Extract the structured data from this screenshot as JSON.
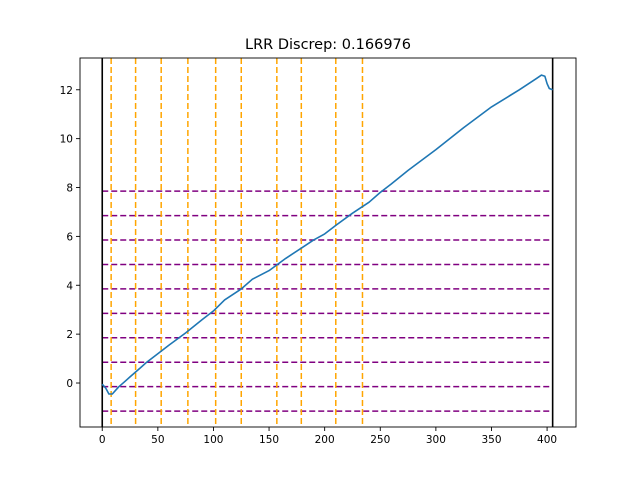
{
  "chart_data": {
    "type": "line",
    "title": "LRR Discrep: 0.166976",
    "xlabel": "",
    "ylabel": "",
    "xlim": [
      -20,
      426
    ],
    "ylim": [
      -1.8,
      13.3
    ],
    "xticks": [
      0,
      50,
      100,
      150,
      200,
      250,
      300,
      350,
      400
    ],
    "xtick_labels": [
      "0",
      "50",
      "100",
      "150",
      "200",
      "250",
      "300",
      "350",
      "400"
    ],
    "yticks": [
      0,
      2,
      4,
      6,
      8,
      10,
      12
    ],
    "ytick_labels": [
      "0",
      "2",
      "4",
      "6",
      "8",
      "10",
      "12"
    ],
    "grid": false,
    "legend": "none",
    "series": [
      {
        "color": "#1f77b4",
        "x": [
          0,
          3,
          6,
          9,
          12,
          15,
          20,
          25,
          30,
          35,
          40,
          50,
          60,
          75,
          90,
          100,
          110,
          125,
          135,
          150,
          165,
          180,
          190,
          200,
          210,
          225,
          240,
          250,
          260,
          275,
          300,
          325,
          350,
          375,
          390,
          395,
          398,
          400,
          402,
          405
        ],
        "y": [
          -0.05,
          -0.2,
          -0.45,
          -0.45,
          -0.3,
          -0.15,
          0.05,
          0.25,
          0.45,
          0.65,
          0.85,
          1.2,
          1.55,
          2.05,
          2.6,
          2.95,
          3.4,
          3.85,
          4.25,
          4.6,
          5.1,
          5.55,
          5.85,
          6.1,
          6.45,
          6.95,
          7.4,
          7.8,
          8.15,
          8.7,
          9.55,
          10.45,
          11.3,
          12.0,
          12.45,
          12.6,
          12.55,
          12.25,
          12.05,
          12.0
        ]
      }
    ],
    "vertical_lines": {
      "color": "#ffa500",
      "style": "dashed",
      "x": [
        8,
        30,
        53,
        77,
        102,
        125,
        157,
        179,
        210,
        234
      ]
    },
    "horizontal_lines": {
      "color": "#800080",
      "style": "dashed",
      "y": [
        -1.15,
        -0.15,
        0.85,
        1.85,
        2.85,
        3.85,
        4.85,
        5.85,
        6.85,
        7.85
      ]
    },
    "boundary_lines": {
      "color": "#000000",
      "style": "solid",
      "x": [
        0,
        405
      ]
    }
  }
}
